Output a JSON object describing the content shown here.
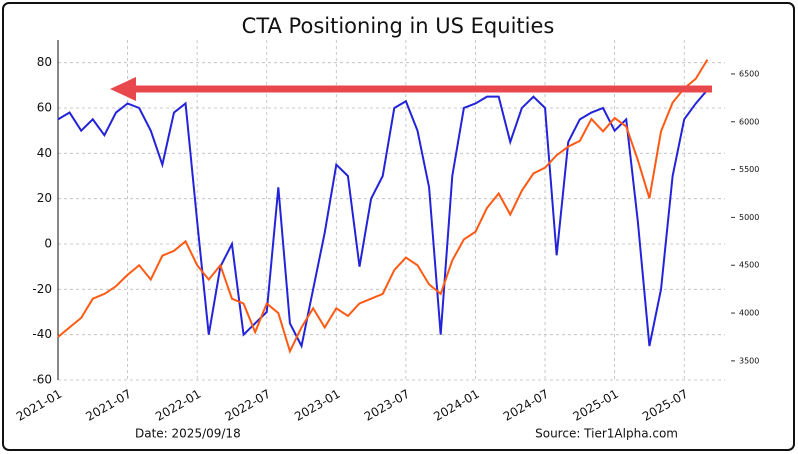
{
  "chart_data": {
    "type": "line",
    "title": "CTA Positioning in US Equities",
    "annotations": [
      "Date: 2025/09/18",
      "Source: Tier1Alpha.com"
    ],
    "x": [
      "2021-01",
      "2021-02",
      "2021-03",
      "2021-04",
      "2021-05",
      "2021-06",
      "2021-07",
      "2021-08",
      "2021-09",
      "2021-10",
      "2021-11",
      "2021-12",
      "2022-01",
      "2022-02",
      "2022-03",
      "2022-04",
      "2022-05",
      "2022-06",
      "2022-07",
      "2022-08",
      "2022-09",
      "2022-10",
      "2022-11",
      "2022-12",
      "2023-01",
      "2023-02",
      "2023-03",
      "2023-04",
      "2023-05",
      "2023-06",
      "2023-07",
      "2023-08",
      "2023-09",
      "2023-10",
      "2023-11",
      "2023-12",
      "2024-01",
      "2024-02",
      "2024-03",
      "2024-04",
      "2024-05",
      "2024-06",
      "2024-07",
      "2024-08",
      "2024-09",
      "2024-10",
      "2024-11",
      "2024-12",
      "2025-01",
      "2025-02",
      "2025-03",
      "2025-04",
      "2025-05",
      "2025-06",
      "2025-07",
      "2025-08",
      "2025-09"
    ],
    "series": [
      {
        "color": "#2323d9",
        "values": [
          55,
          58,
          50,
          55,
          48,
          58,
          62,
          60,
          50,
          35,
          58,
          62,
          10,
          -40,
          -10,
          0,
          -40,
          -35,
          -30,
          25,
          -35,
          -45,
          -20,
          5,
          35,
          30,
          -10,
          20,
          30,
          60,
          63,
          50,
          25,
          -40,
          30,
          60,
          62,
          65,
          65,
          45,
          60,
          65,
          60,
          -5,
          45,
          55,
          58,
          60,
          50,
          55,
          10,
          -45,
          -20,
          30,
          55,
          62,
          68
        ]
      },
      {
        "color": "#ff5a14",
        "axis": "y2",
        "values": [
          3750,
          3850,
          3950,
          4150,
          4200,
          4280,
          4400,
          4500,
          4350,
          4600,
          4650,
          4750,
          4500,
          4350,
          4500,
          4150,
          4100,
          3800,
          4100,
          4000,
          3600,
          3850,
          4050,
          3850,
          4050,
          3970,
          4100,
          4150,
          4200,
          4450,
          4580,
          4500,
          4300,
          4200,
          4550,
          4770,
          4850,
          5100,
          5250,
          5030,
          5280,
          5460,
          5520,
          5650,
          5740,
          5800,
          6030,
          5900,
          6040,
          5950,
          5600,
          5200,
          5900,
          6200,
          6350,
          6450,
          6650
        ]
      }
    ],
    "xlim": [
      "2021-01",
      "2025-10"
    ],
    "xticks": [
      "2021-01",
      "2021-07",
      "2022-01",
      "2022-07",
      "2023-01",
      "2023-07",
      "2024-01",
      "2024-07",
      "2025-01",
      "2025-07"
    ],
    "ylim": [
      -60,
      90
    ],
    "yticks": [
      -60,
      -40,
      -20,
      0,
      20,
      40,
      60,
      80
    ],
    "y2lim": [
      3300,
      6855
    ],
    "y2ticks": [
      3500,
      4000,
      4500,
      5000,
      5500,
      6000,
      6500
    ],
    "grid": true
  }
}
